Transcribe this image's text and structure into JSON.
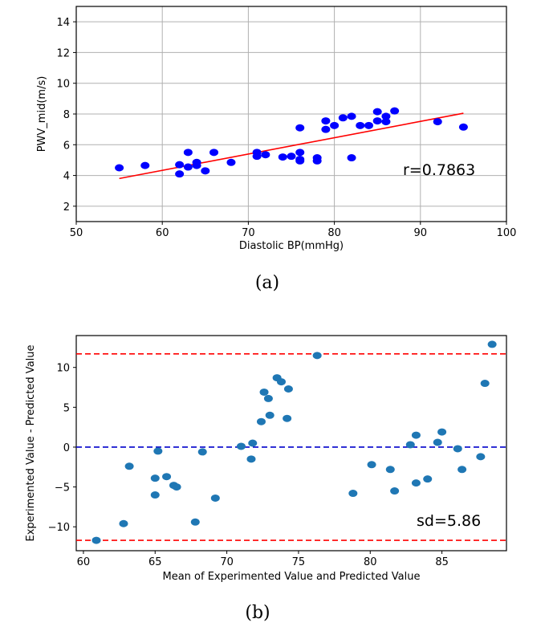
{
  "chart_data": [
    {
      "type": "scatter",
      "caption": "(a)",
      "xlabel": "Diastolic BP(mmHg)",
      "ylabel": "PWV_mid(m/s)",
      "xlim": [
        50,
        100
      ],
      "ylim": [
        1,
        15
      ],
      "xticks": [
        50,
        60,
        70,
        80,
        90,
        100
      ],
      "yticks": [
        2,
        4,
        6,
        8,
        10,
        12,
        14
      ],
      "grid": true,
      "point_color": "#0000ff",
      "line_color": "#ff0000",
      "annotation": "r=0.7863",
      "series": [
        {
          "points": [
            [
              55,
              4.5
            ],
            [
              58,
              4.65
            ],
            [
              62,
              4.1
            ],
            [
              62,
              4.7
            ],
            [
              63,
              4.55
            ],
            [
              63,
              5.5
            ],
            [
              64,
              4.65
            ],
            [
              64,
              4.85
            ],
            [
              65,
              4.3
            ],
            [
              66,
              5.5
            ],
            [
              68,
              4.85
            ],
            [
              71,
              5.25
            ],
            [
              71,
              5.5
            ],
            [
              72,
              5.35
            ],
            [
              74,
              5.2
            ],
            [
              75,
              5.25
            ],
            [
              76,
              4.95
            ],
            [
              76,
              5.05
            ],
            [
              76,
              5.5
            ],
            [
              76,
              7.1
            ],
            [
              78,
              4.95
            ],
            [
              78,
              5.15
            ],
            [
              79,
              7.0
            ],
            [
              79,
              7.55
            ],
            [
              80,
              7.25
            ],
            [
              81,
              7.75
            ],
            [
              82,
              7.85
            ],
            [
              82,
              5.15
            ],
            [
              83,
              7.25
            ],
            [
              84,
              7.25
            ],
            [
              85,
              7.55
            ],
            [
              85,
              8.15
            ],
            [
              86,
              7.5
            ],
            [
              86,
              7.85
            ],
            [
              87,
              8.2
            ],
            [
              92,
              7.5
            ],
            [
              95,
              7.15
            ]
          ]
        }
      ],
      "fit_line": [
        [
          55,
          3.8
        ],
        [
          95,
          8.05
        ]
      ]
    },
    {
      "type": "scatter",
      "caption": "(b)",
      "xlabel": "Mean of Experimented Value and Predicted Value",
      "ylabel": "Experimented Value - Predicted Value",
      "xlim": [
        59.5,
        89.5
      ],
      "ylim": [
        -13,
        14
      ],
      "xticks": [
        60,
        65,
        70,
        75,
        80,
        85
      ],
      "yticks": [
        -10,
        -5,
        0,
        5,
        10
      ],
      "grid": false,
      "point_color": "#1f77b4",
      "limit_color": "#ff0000",
      "mean_color": "#0000cc",
      "annotation": "sd=5.86",
      "mean_line": 0,
      "upper_limit": 11.7,
      "lower_limit": -11.7,
      "series": [
        {
          "points": [
            [
              60.9,
              -11.7
            ],
            [
              62.8,
              -9.6
            ],
            [
              63.2,
              -2.4
            ],
            [
              65.0,
              -3.9
            ],
            [
              65.0,
              -6.0
            ],
            [
              65.2,
              -0.5
            ],
            [
              65.8,
              -3.7
            ],
            [
              66.3,
              -4.8
            ],
            [
              66.5,
              -5.0
            ],
            [
              67.8,
              -9.4
            ],
            [
              68.3,
              -0.6
            ],
            [
              69.2,
              -6.4
            ],
            [
              71.0,
              0.1
            ],
            [
              71.7,
              -1.5
            ],
            [
              71.8,
              0.5
            ],
            [
              72.4,
              3.2
            ],
            [
              72.6,
              6.9
            ],
            [
              72.9,
              6.1
            ],
            [
              73.0,
              4.0
            ],
            [
              73.5,
              8.7
            ],
            [
              73.8,
              8.2
            ],
            [
              74.2,
              3.6
            ],
            [
              74.3,
              7.3
            ],
            [
              76.3,
              11.5
            ],
            [
              78.8,
              -5.8
            ],
            [
              80.1,
              -2.2
            ],
            [
              81.4,
              -2.8
            ],
            [
              81.7,
              -5.5
            ],
            [
              82.8,
              0.3
            ],
            [
              83.2,
              -4.5
            ],
            [
              83.2,
              1.5
            ],
            [
              84.0,
              -4.0
            ],
            [
              84.7,
              0.6
            ],
            [
              85.0,
              1.9
            ],
            [
              86.1,
              -0.2
            ],
            [
              86.4,
              -2.8
            ],
            [
              87.7,
              -1.2
            ],
            [
              88.0,
              8.0
            ],
            [
              88.5,
              12.9
            ]
          ]
        }
      ]
    }
  ]
}
